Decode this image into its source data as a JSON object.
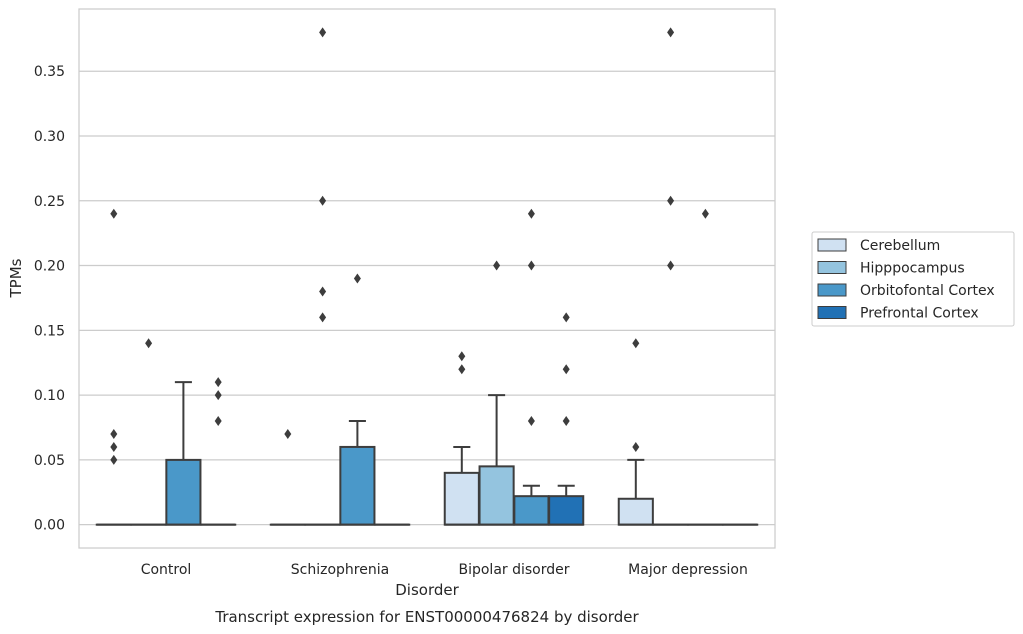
{
  "chart_data": {
    "type": "box",
    "title": "Transcript expression for ENST00000476824 by disorder",
    "xlabel": "Disorder",
    "ylabel": "TPMs",
    "categories": [
      "Control",
      "Schizophrenia",
      "Bipolar disorder",
      "Major depression"
    ],
    "ylim": [
      -0.018,
      0.398
    ],
    "yticks": [
      0.0,
      0.05,
      0.1,
      0.15,
      0.2,
      0.25,
      0.3,
      0.35
    ],
    "ytick_labels": [
      "0.00",
      "0.05",
      "0.10",
      "0.15",
      "0.20",
      "0.25",
      "0.30",
      "0.35"
    ],
    "grid": true,
    "legend_position": "right",
    "series": [
      {
        "name": "Cerebellum",
        "color": "#d0e1f2",
        "boxes": [
          {
            "q1": 0,
            "median": 0,
            "q3": 0,
            "whislo": 0,
            "whishi": 0,
            "fliers": [
              0.05,
              0.06,
              0.07,
              0.24
            ]
          },
          {
            "q1": 0,
            "median": 0,
            "q3": 0,
            "whislo": 0,
            "whishi": 0,
            "fliers": [
              0.07
            ]
          },
          {
            "q1": 0,
            "median": 0,
            "q3": 0.04,
            "whislo": 0,
            "whishi": 0.06,
            "fliers": [
              0.12,
              0.13
            ]
          },
          {
            "q1": 0,
            "median": 0,
            "q3": 0.02,
            "whislo": 0,
            "whishi": 0.05,
            "fliers": [
              0.06,
              0.14
            ]
          }
        ]
      },
      {
        "name": "Hipppocampus",
        "color": "#94c4df",
        "boxes": [
          {
            "q1": 0,
            "median": 0,
            "q3": 0,
            "whislo": 0,
            "whishi": 0,
            "fliers": [
              0.14
            ]
          },
          {
            "q1": 0,
            "median": 0,
            "q3": 0,
            "whislo": 0,
            "whishi": 0,
            "fliers": [
              0.16,
              0.18,
              0.25,
              0.38
            ]
          },
          {
            "q1": 0,
            "median": 0,
            "q3": 0.045,
            "whislo": 0,
            "whishi": 0.1,
            "fliers": [
              0.2
            ]
          },
          {
            "q1": 0,
            "median": 0,
            "q3": 0,
            "whislo": 0,
            "whishi": 0,
            "fliers": [
              0.2,
              0.25,
              0.38
            ]
          }
        ]
      },
      {
        "name": "Orbitofontal Cortex",
        "color": "#4a98c9",
        "boxes": [
          {
            "q1": 0,
            "median": 0,
            "q3": 0.05,
            "whislo": 0,
            "whishi": 0.11,
            "fliers": []
          },
          {
            "q1": 0,
            "median": 0,
            "q3": 0.06,
            "whislo": 0,
            "whishi": 0.08,
            "fliers": [
              0.19
            ]
          },
          {
            "q1": 0,
            "median": 0,
            "q3": 0.022,
            "whislo": 0,
            "whishi": 0.03,
            "fliers": [
              0.08,
              0.2,
              0.24
            ]
          },
          {
            "q1": 0,
            "median": 0,
            "q3": 0,
            "whislo": 0,
            "whishi": 0,
            "fliers": [
              0.24
            ]
          }
        ]
      },
      {
        "name": "Prefrontal Cortex",
        "color": "#2171b5",
        "boxes": [
          {
            "q1": 0,
            "median": 0,
            "q3": 0,
            "whislo": 0,
            "whishi": 0,
            "fliers": [
              0.08,
              0.1,
              0.11
            ]
          },
          {
            "q1": 0,
            "median": 0,
            "q3": 0,
            "whislo": 0,
            "whishi": 0,
            "fliers": []
          },
          {
            "q1": 0,
            "median": 0,
            "q3": 0.022,
            "whislo": 0,
            "whishi": 0.03,
            "fliers": [
              0.08,
              0.12,
              0.16
            ]
          },
          {
            "q1": 0,
            "median": 0,
            "q3": 0,
            "whislo": 0,
            "whishi": 0,
            "fliers": []
          }
        ]
      }
    ]
  }
}
